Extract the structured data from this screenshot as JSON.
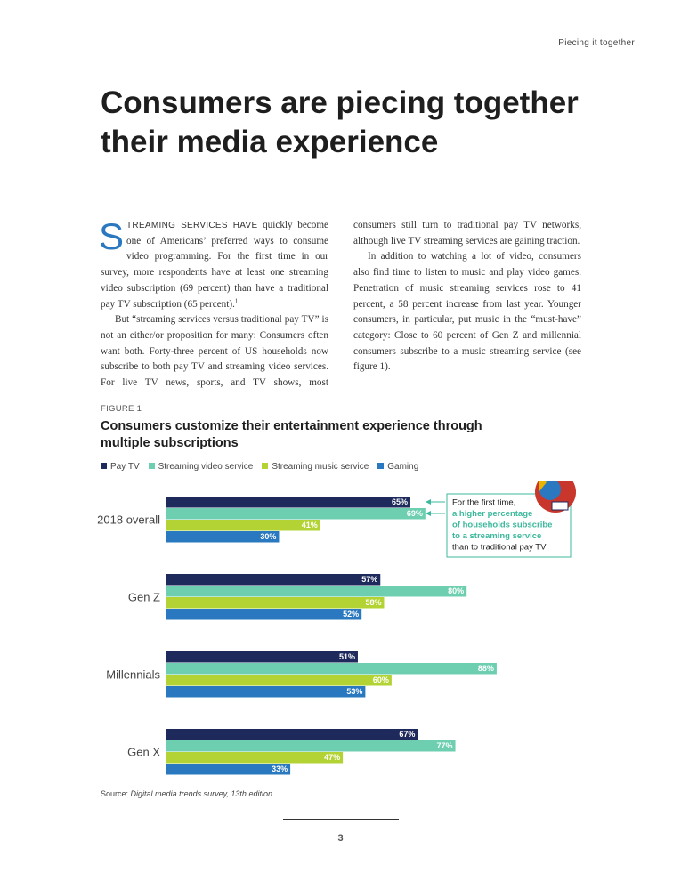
{
  "header": {
    "section": "Piecing it together"
  },
  "title": "Consumers are piecing together their media experience",
  "body": {
    "drop_cap": "S",
    "lead": "TREAMING SERVICES HAVE",
    "paragraphs": [
      "quickly become one of Americans’ preferred ways to consume video programming. For the first time in our survey, more respondents have at least one streaming video subscription (69 percent) than have a traditional pay TV subscription (65 percent).",
      "But “streaming services versus traditional pay TV” is not an either/or proposition for many: Consumers often want both. Forty-three percent of US households now subscribe to both pay TV and streaming video services. For live TV news, sports, and TV shows, most consumers still turn to traditional pay TV networks, although live TV streaming services are gaining traction.",
      "In addition to watching a lot of video, consumers also find time to listen to music and play video games. Penetration of music streaming services rose to 41 percent, a 58 percent increase from last year. Younger consumers, in particular, put music in the “must-have” category: Close to 60 percent of Gen Z and millennial consumers subscribe to a music streaming service (see figure 1)."
    ],
    "footnote_ref": "1"
  },
  "figure": {
    "label": "FIGURE 1",
    "title": "Consumers customize their entertainment experience through multiple subscriptions",
    "chart_data": {
      "type": "bar",
      "orientation": "horizontal",
      "categories": [
        "2018 overall",
        "Gen Z",
        "Millennials",
        "Gen X"
      ],
      "series": [
        {
          "name": "Pay TV",
          "color": "#1f2a5c",
          "values": [
            65,
            57,
            51,
            67
          ],
          "value_labels": [
            "65%",
            "57%",
            "51%",
            "67%"
          ]
        },
        {
          "name": "Streaming video service",
          "color": "#6dcfb0",
          "values": [
            69,
            80,
            88,
            77
          ],
          "value_labels": [
            "69%",
            "80%",
            "88%",
            "77%"
          ]
        },
        {
          "name": "Streaming music service",
          "color": "#b3d334",
          "values": [
            41,
            58,
            60,
            47
          ],
          "value_labels": [
            "41%",
            "58%",
            "60%",
            "47%"
          ]
        },
        {
          "name": "Gaming",
          "color": "#2a78bf",
          "values": [
            30,
            52,
            53,
            33
          ],
          "value_labels": [
            "30%",
            "52%",
            "53%",
            "33%"
          ]
        }
      ],
      "annotation": {
        "lines": [
          "For the first time,",
          "a higher percentage",
          "of households subscribe",
          "to a streaming service",
          "than to traditional pay TV"
        ],
        "highlight_lines": [
          1,
          2,
          3
        ],
        "color": "#3cb89c"
      }
    },
    "source_label": "Source:",
    "source": "Digital media trends survey, 13th edition."
  },
  "page_number": "3"
}
